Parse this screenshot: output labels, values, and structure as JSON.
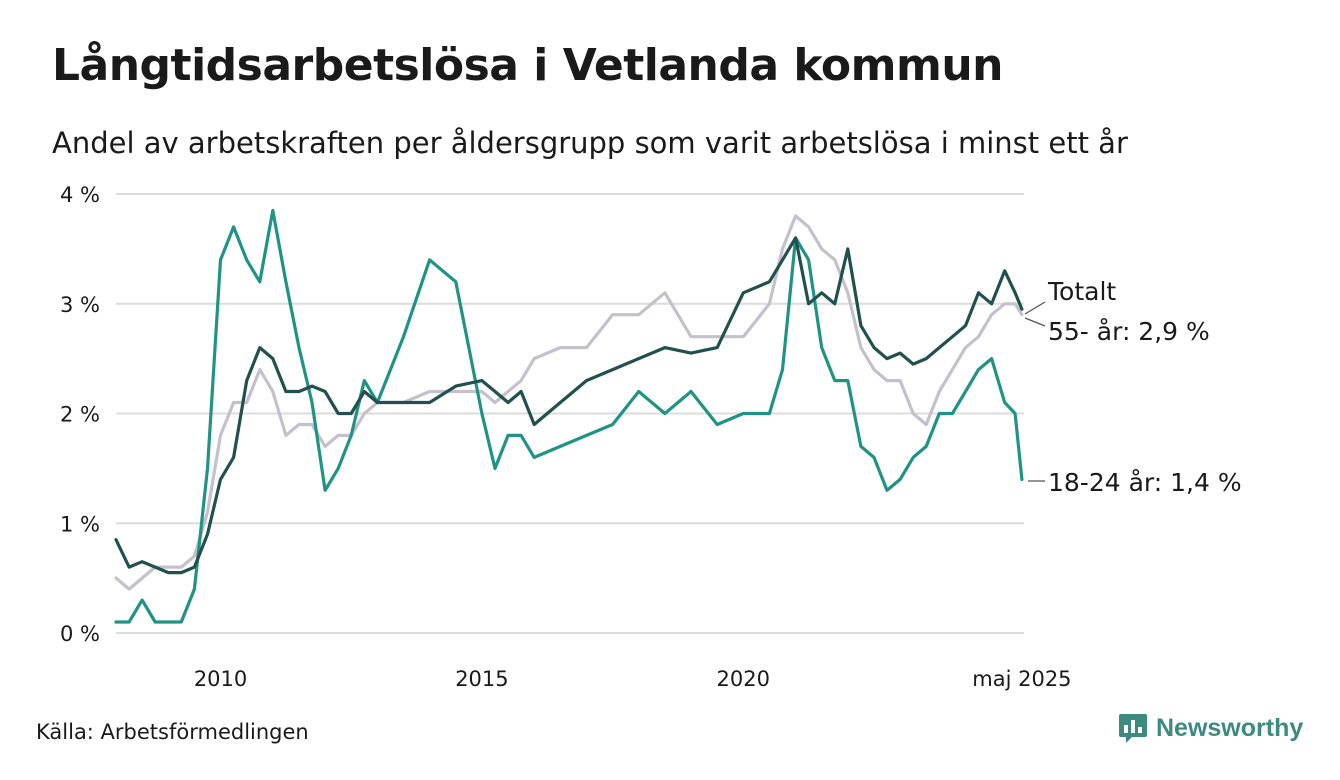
{
  "title": "Långtidsarbetslösa i Vetlanda kommun",
  "subtitle": "Andel av arbetskraften per åldersgrupp som varit arbetslösa i minst ett år",
  "source": "Källa: Arbetsförmedlingen",
  "brand": {
    "name": "Newsworthy",
    "icon": "bar-chart-speech-bubble-icon",
    "color": "#3d8a80"
  },
  "chart_data": {
    "type": "line",
    "x_unit": "year",
    "xlim": [
      2008,
      2025.37
    ],
    "ylim": [
      0,
      4
    ],
    "y_ticks": [
      {
        "value": 0,
        "label": "0 %"
      },
      {
        "value": 1,
        "label": "1 %"
      },
      {
        "value": 2,
        "label": "2 %"
      },
      {
        "value": 3,
        "label": "3 %"
      },
      {
        "value": 4,
        "label": "4 %"
      }
    ],
    "x_ticks": [
      {
        "value": 2010,
        "label": "2010"
      },
      {
        "value": 2015,
        "label": "2015"
      },
      {
        "value": 2020,
        "label": "2020"
      },
      {
        "value": 2025.33,
        "label": "maj 2025"
      }
    ],
    "grid": true,
    "legend": "end-labels",
    "series": [
      {
        "name": "55- år",
        "end_label": "55- år: 2,9 %",
        "color": "#c4c1cc",
        "x": [
          2008.0,
          2008.25,
          2008.5,
          2008.75,
          2009.0,
          2009.25,
          2009.5,
          2009.75,
          2010.0,
          2010.25,
          2010.5,
          2010.75,
          2011.0,
          2011.25,
          2011.5,
          2011.75,
          2012.0,
          2012.25,
          2012.5,
          2012.75,
          2013.0,
          2013.5,
          2014.0,
          2014.5,
          2015.0,
          2015.25,
          2015.5,
          2015.75,
          2016.0,
          2016.5,
          2017.0,
          2017.5,
          2018.0,
          2018.5,
          2019.0,
          2019.5,
          2020.0,
          2020.5,
          2020.75,
          2021.0,
          2021.25,
          2021.5,
          2021.75,
          2022.0,
          2022.25,
          2022.5,
          2022.75,
          2023.0,
          2023.25,
          2023.5,
          2023.75,
          2024.0,
          2024.25,
          2024.5,
          2024.75,
          2025.0,
          2025.2,
          2025.33
        ],
        "values": [
          0.5,
          0.4,
          0.5,
          0.6,
          0.6,
          0.6,
          0.7,
          1.1,
          1.8,
          2.1,
          2.1,
          2.4,
          2.2,
          1.8,
          1.9,
          1.9,
          1.7,
          1.8,
          1.8,
          2.0,
          2.1,
          2.1,
          2.2,
          2.2,
          2.2,
          2.1,
          2.2,
          2.3,
          2.5,
          2.6,
          2.6,
          2.9,
          2.9,
          3.1,
          2.7,
          2.7,
          2.7,
          3.0,
          3.5,
          3.8,
          3.7,
          3.5,
          3.4,
          3.1,
          2.6,
          2.4,
          2.3,
          2.3,
          2.0,
          1.9,
          2.2,
          2.4,
          2.6,
          2.7,
          2.9,
          3.0,
          3.0,
          2.9
        ]
      },
      {
        "name": "18-24 år",
        "end_label": "18-24 år: 1,4 %",
        "color": "#1f9384",
        "x": [
          2008.0,
          2008.25,
          2008.5,
          2008.75,
          2009.0,
          2009.25,
          2009.5,
          2009.75,
          2010.0,
          2010.25,
          2010.5,
          2010.75,
          2011.0,
          2011.25,
          2011.5,
          2011.75,
          2012.0,
          2012.25,
          2012.5,
          2012.75,
          2013.0,
          2013.5,
          2014.0,
          2014.5,
          2015.0,
          2015.25,
          2015.5,
          2015.75,
          2016.0,
          2016.5,
          2017.0,
          2017.5,
          2018.0,
          2018.5,
          2019.0,
          2019.5,
          2020.0,
          2020.5,
          2020.75,
          2021.0,
          2021.25,
          2021.5,
          2021.75,
          2022.0,
          2022.25,
          2022.5,
          2022.75,
          2023.0,
          2023.25,
          2023.5,
          2023.75,
          2024.0,
          2024.25,
          2024.5,
          2024.75,
          2025.0,
          2025.2,
          2025.33
        ],
        "values": [
          0.1,
          0.1,
          0.3,
          0.1,
          0.1,
          0.1,
          0.4,
          1.5,
          3.4,
          3.7,
          3.4,
          3.2,
          3.85,
          3.2,
          2.6,
          2.1,
          1.3,
          1.5,
          1.8,
          2.3,
          2.1,
          2.7,
          3.4,
          3.2,
          2.0,
          1.5,
          1.8,
          1.8,
          1.6,
          1.7,
          1.8,
          1.9,
          2.2,
          2.0,
          2.2,
          1.9,
          2.0,
          2.0,
          2.4,
          3.6,
          3.4,
          2.6,
          2.3,
          2.3,
          1.7,
          1.6,
          1.3,
          1.4,
          1.6,
          1.7,
          2.0,
          2.0,
          2.2,
          2.4,
          2.5,
          2.1,
          2.0,
          1.4
        ]
      },
      {
        "name": "Totalt",
        "end_label": "Totalt",
        "color": "#22504c",
        "x": [
          2008.0,
          2008.25,
          2008.5,
          2008.75,
          2009.0,
          2009.25,
          2009.5,
          2009.75,
          2010.0,
          2010.25,
          2010.5,
          2010.75,
          2011.0,
          2011.25,
          2011.5,
          2011.75,
          2012.0,
          2012.25,
          2012.5,
          2012.75,
          2013.0,
          2013.5,
          2014.0,
          2014.5,
          2015.0,
          2015.25,
          2015.5,
          2015.75,
          2016.0,
          2016.5,
          2017.0,
          2017.5,
          2018.0,
          2018.5,
          2019.0,
          2019.5,
          2020.0,
          2020.5,
          2020.75,
          2021.0,
          2021.25,
          2021.5,
          2021.75,
          2022.0,
          2022.25,
          2022.5,
          2022.75,
          2023.0,
          2023.25,
          2023.5,
          2023.75,
          2024.0,
          2024.25,
          2024.5,
          2024.75,
          2025.0,
          2025.2,
          2025.33
        ],
        "values": [
          0.85,
          0.6,
          0.65,
          0.6,
          0.55,
          0.55,
          0.6,
          0.9,
          1.4,
          1.6,
          2.3,
          2.6,
          2.5,
          2.2,
          2.2,
          2.25,
          2.2,
          2.0,
          2.0,
          2.2,
          2.1,
          2.1,
          2.1,
          2.25,
          2.3,
          2.2,
          2.1,
          2.2,
          1.9,
          2.1,
          2.3,
          2.4,
          2.5,
          2.6,
          2.55,
          2.6,
          3.1,
          3.2,
          3.4,
          3.6,
          3.0,
          3.1,
          3.0,
          3.5,
          2.8,
          2.6,
          2.5,
          2.55,
          2.45,
          2.5,
          2.6,
          2.7,
          2.8,
          3.1,
          3.0,
          3.3,
          3.1,
          2.95
        ]
      }
    ]
  }
}
